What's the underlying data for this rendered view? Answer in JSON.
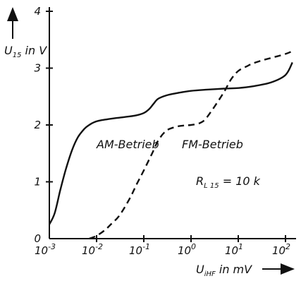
{
  "chart_data": {
    "type": "line",
    "x_scale": "log",
    "xlim": [
      0.001,
      100
    ],
    "ylim": [
      0,
      4
    ],
    "grid": false,
    "x_tick_labels": [
      {
        "value": 0.001,
        "base": "10",
        "exp": "-3"
      },
      {
        "value": 0.01,
        "base": "10",
        "exp": "-2"
      },
      {
        "value": 0.1,
        "base": "10",
        "exp": "-1"
      },
      {
        "value": 1,
        "base": "10",
        "exp": "0"
      },
      {
        "value": 10,
        "base": "10",
        "exp": "1"
      },
      {
        "value": 100,
        "base": "10",
        "exp": "2"
      }
    ],
    "y_ticks": [
      0,
      1,
      2,
      3,
      4
    ],
    "y_tick_labels": [
      "0",
      "1",
      "2",
      "3",
      "4"
    ],
    "ylabel": {
      "main": "U",
      "sub": "15",
      "rest": " in V"
    },
    "xlabel": {
      "main": "U",
      "sub": "iHF",
      "rest": " in mV"
    },
    "annotation": {
      "main": "R",
      "sub": "L 15",
      "rest": " = 10 k"
    },
    "series": [
      {
        "name": "AM-Betrieb",
        "style": "solid",
        "x": [
          0.001,
          0.0013,
          0.0017,
          0.0022,
          0.003,
          0.004,
          0.0055,
          0.007,
          0.009,
          0.012,
          0.017,
          0.025,
          0.04,
          0.07,
          0.1,
          0.13,
          0.16,
          0.2,
          0.3,
          0.5,
          1,
          2,
          5,
          10,
          20,
          50,
          100,
          140
        ],
        "y": [
          0.25,
          0.45,
          0.85,
          1.2,
          1.55,
          1.78,
          1.93,
          2.0,
          2.05,
          2.08,
          2.1,
          2.12,
          2.14,
          2.17,
          2.21,
          2.28,
          2.37,
          2.46,
          2.52,
          2.56,
          2.6,
          2.62,
          2.64,
          2.65,
          2.68,
          2.75,
          2.88,
          3.1
        ]
      },
      {
        "name": "FM-Betrieb",
        "style": "dashed",
        "x": [
          0.007,
          0.01,
          0.015,
          0.02,
          0.03,
          0.05,
          0.07,
          0.1,
          0.15,
          0.2,
          0.3,
          0.5,
          0.7,
          1,
          1.5,
          2,
          3,
          5,
          7,
          10,
          15,
          20,
          30,
          50,
          100,
          140
        ],
        "y": [
          0.0,
          0.05,
          0.15,
          0.25,
          0.4,
          0.7,
          0.95,
          1.2,
          1.5,
          1.72,
          1.9,
          1.97,
          1.99,
          2.0,
          2.03,
          2.1,
          2.3,
          2.58,
          2.8,
          2.95,
          3.03,
          3.08,
          3.13,
          3.18,
          3.25,
          3.3
        ]
      }
    ]
  }
}
